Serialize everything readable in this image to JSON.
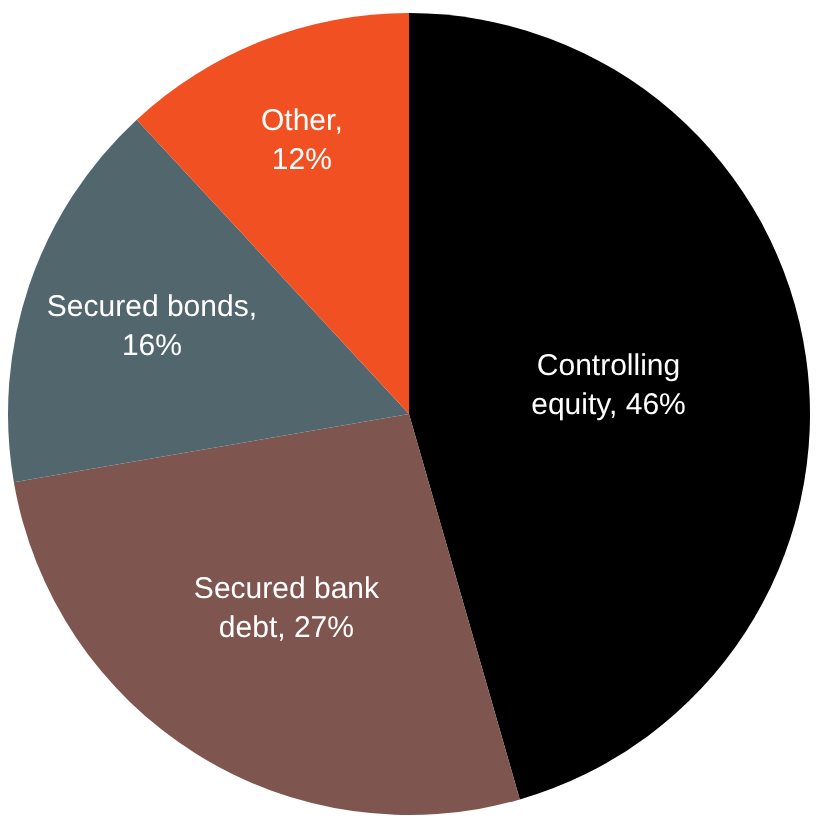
{
  "chart_data": {
    "type": "pie",
    "categories": [
      "Controlling equity, 46%",
      "Secured bank debt, 27%",
      "Secured bonds, 16%",
      "Other, 12%"
    ],
    "values": [
      46,
      27,
      16,
      12
    ],
    "colors": [
      "#000000",
      "#7f5550",
      "#52666e",
      "#f05022"
    ],
    "legend": false
  }
}
